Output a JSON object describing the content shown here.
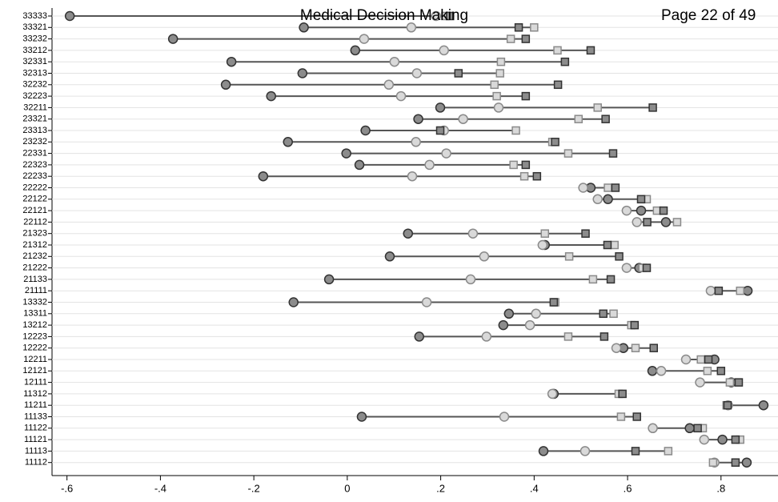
{
  "header": {
    "title": "Medical Decision Making",
    "page": "Page 22 of 49"
  },
  "chart_data": {
    "type": "dot-range",
    "categories": [
      "33333",
      "33321",
      "33232",
      "33212",
      "32331",
      "32313",
      "32232",
      "32223",
      "32211",
      "23321",
      "23313",
      "23232",
      "22331",
      "22323",
      "22233",
      "22222",
      "22122",
      "22121",
      "22112",
      "21323",
      "21312",
      "21232",
      "21222",
      "21133",
      "21111",
      "13332",
      "13311",
      "13212",
      "12223",
      "12222",
      "12211",
      "12121",
      "12111",
      "11312",
      "11211",
      "11133",
      "11122",
      "11121",
      "11113",
      "11112"
    ],
    "series": [
      {
        "color": "#8c8c8c",
        "marker": "circle",
        "values": [
          -0.594,
          -0.093,
          -0.373,
          0.017,
          -0.248,
          -0.096,
          -0.26,
          -0.163,
          0.199,
          0.152,
          0.039,
          -0.127,
          -0.002,
          0.026,
          -0.18,
          0.521,
          0.558,
          0.629,
          0.682,
          0.13,
          0.423,
          0.091,
          0.625,
          -0.039,
          0.857,
          -0.115,
          0.346,
          0.334,
          0.154,
          0.591,
          0.786,
          0.653,
          0.822,
          0.442,
          0.891,
          0.031,
          0.733,
          0.803,
          0.42,
          0.855
        ]
      },
      {
        "color": "#d9d9d9",
        "marker": "circle",
        "values": [
          0.19,
          0.137,
          0.036,
          0.207,
          0.101,
          0.149,
          0.089,
          0.115,
          0.324,
          0.248,
          0.207,
          0.147,
          0.212,
          0.176,
          0.139,
          0.505,
          0.536,
          0.598,
          0.62,
          0.269,
          0.418,
          0.293,
          0.598,
          0.264,
          0.778,
          0.17,
          0.404,
          0.391,
          0.298,
          0.576,
          0.725,
          0.672,
          0.755,
          0.439,
          0.815,
          0.336,
          0.654,
          0.764,
          0.509,
          0.786
        ]
      },
      {
        "color": "#d9d9d9",
        "marker": "square",
        "values": [
          0.21,
          0.4,
          0.35,
          0.45,
          0.329,
          0.327,
          0.315,
          0.32,
          0.536,
          0.495,
          0.361,
          0.439,
          0.473,
          0.356,
          0.379,
          0.558,
          0.641,
          0.663,
          0.706,
          0.423,
          0.572,
          0.475,
          0.632,
          0.526,
          0.841,
          0.445,
          0.57,
          0.608,
          0.473,
          0.617,
          0.757,
          0.771,
          0.819,
          0.581,
          0.812,
          0.586,
          0.761,
          0.841,
          0.687,
          0.783
        ]
      },
      {
        "color": "#8c8c8c",
        "marker": "square",
        "values": [
          0.22,
          0.367,
          0.382,
          0.521,
          0.466,
          0.238,
          0.451,
          0.382,
          0.654,
          0.553,
          0.199,
          0.445,
          0.569,
          0.382,
          0.406,
          0.574,
          0.629,
          0.677,
          0.642,
          0.51,
          0.557,
          0.582,
          0.641,
          0.564,
          0.795,
          0.442,
          0.548,
          0.615,
          0.55,
          0.656,
          0.773,
          0.8,
          0.838,
          0.589,
          0.814,
          0.62,
          0.75,
          0.831,
          0.617,
          0.831
        ]
      }
    ],
    "xlim": [
      -0.632,
      0.922
    ],
    "xticks": [
      {
        "value": -0.6,
        "label": "-.6"
      },
      {
        "value": -0.4,
        "label": "-.4"
      },
      {
        "value": -0.2,
        "label": "-.2"
      },
      0,
      {
        "value": 0.2,
        "label": ".2"
      },
      {
        "value": 0.4,
        "label": ".4"
      },
      {
        "value": 0.6,
        "label": ".6"
      },
      {
        "value": 0.8,
        "label": ".8"
      }
    ],
    "grid": true
  }
}
